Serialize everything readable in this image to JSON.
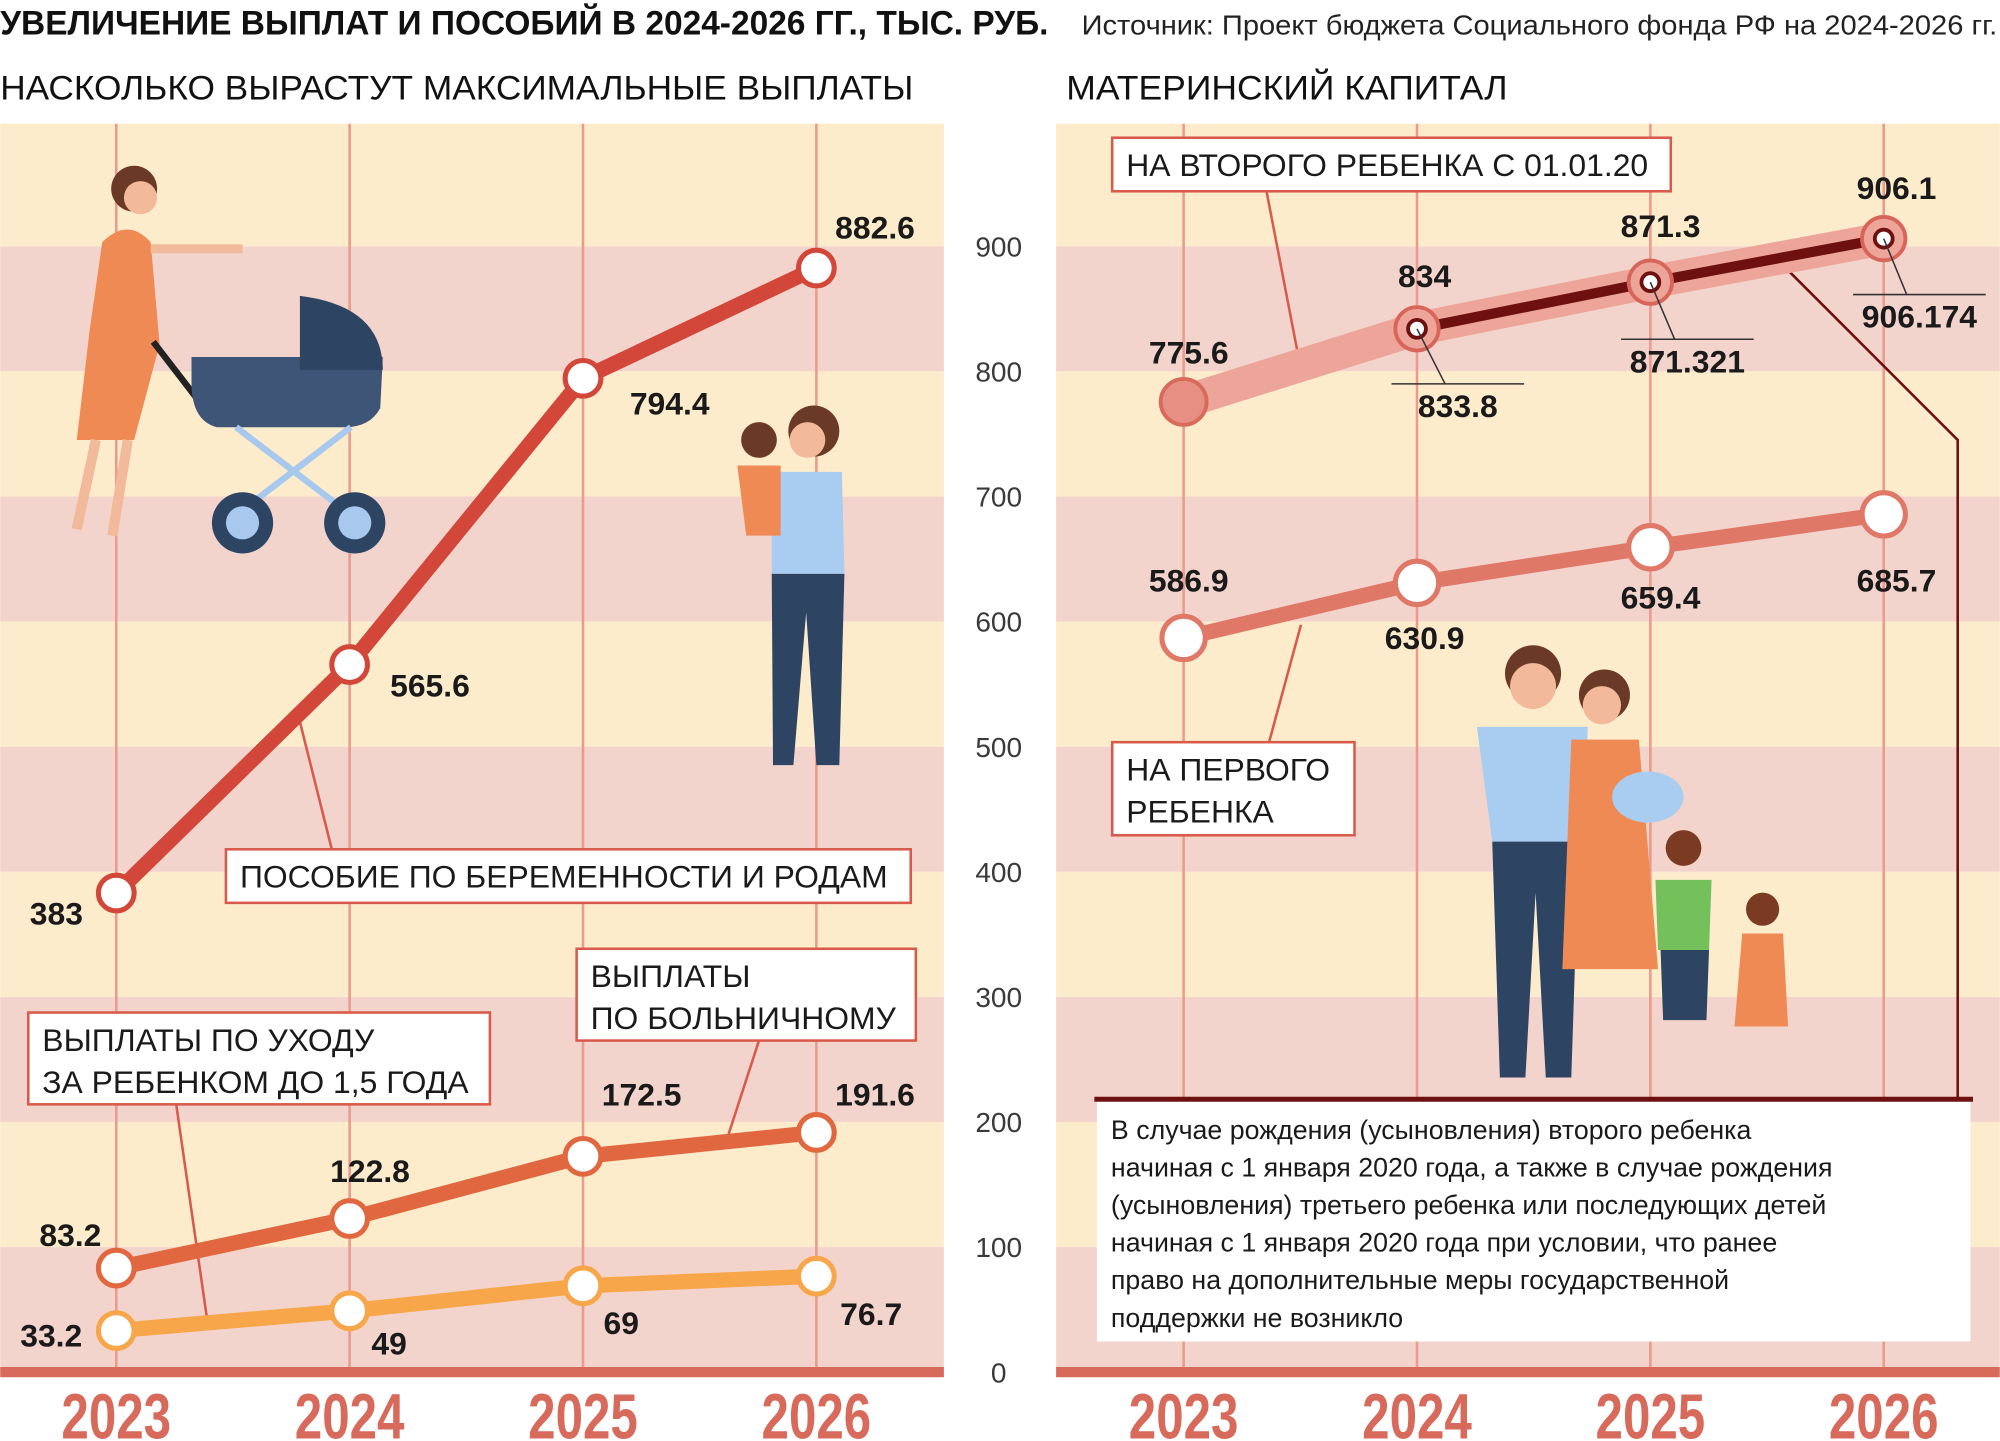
{
  "title": "УВЕЛИЧЕНИЕ ВЫПЛАТ И ПОСОБИЙ В 2024-2026 ГГ., ТЫС. РУБ.",
  "source": "Источник: Проект бюджета Социального фонда РФ на 2024-2026 гг.",
  "colors": {
    "band_light": "#fdeccb",
    "band_dark": "#f3d4cc",
    "grid": "#ec9a8c",
    "maternity": "#d2473a",
    "sick": "#e0673f",
    "childcare": "#f7a64a",
    "first_child": "#e07868",
    "second_child": "#eda59a",
    "second_child_inner": "#6e1010",
    "axis": "#d86a5c"
  },
  "chart_data": [
    {
      "type": "line",
      "title": "НАСКОЛЬКО ВЫРАСТУТ МАКСИМАЛЬНЫЕ ВЫПЛАТЫ",
      "categories": [
        "2023",
        "2024",
        "2025",
        "2026"
      ],
      "ylim": [
        0,
        1000
      ],
      "yticks": [
        0,
        100,
        200,
        300,
        400,
        500,
        600,
        700,
        800,
        900
      ],
      "grid": true,
      "series": [
        {
          "name": "ПОСОБИЕ ПО БЕРЕМЕННОСТИ И РОДАМ",
          "values": [
            383,
            565.6,
            794.4,
            882.6
          ]
        },
        {
          "name": "ВЫПЛАТЫ ПО БОЛЬНИЧНОМУ",
          "name_lines": [
            "ВЫПЛАТЫ",
            "ПО БОЛЬНИЧНОМУ"
          ],
          "values": [
            83.2,
            122.8,
            172.5,
            191.6
          ]
        },
        {
          "name": "ВЫПЛАТЫ ПО УХОДУ ЗА РЕБЕНКОМ ДО 1,5 ГОДА",
          "name_lines": [
            "ВЫПЛАТЫ ПО УХОДУ",
            "ЗА РЕБЕНКОМ ДО 1,5 ГОДА"
          ],
          "values": [
            33.2,
            49,
            69,
            76.7
          ]
        }
      ]
    },
    {
      "type": "line",
      "title": "МАТЕРИНСКИЙ КАПИТАЛ",
      "categories": [
        "2023",
        "2024",
        "2025",
        "2026"
      ],
      "ylim": [
        0,
        1000
      ],
      "grid": true,
      "series": [
        {
          "name": "НА ВТОРОГО РЕБЕНКА С 01.01.20",
          "values": [
            775.6,
            834,
            871.3,
            906.1
          ],
          "labels": [
            "775.6",
            "834",
            "871.3",
            "906.1"
          ],
          "alt_values": [
            833.8,
            871.321,
            906.174
          ]
        },
        {
          "name": "НА ПЕРВОГО РЕБЕНКА",
          "name_lines": [
            "НА ПЕРВОГО",
            "РЕБЕНКА"
          ],
          "values": [
            586.9,
            630.9,
            659.4,
            685.7
          ]
        }
      ],
      "note": [
        "В случае рождения (усыновления) второго ребенка",
        "начиная с 1 января 2020 года, а также в случае рождения",
        "(усыновления) третьего ребенка или последующих детей",
        "начиная с 1 января 2020 года при условии, что ранее",
        "право на дополнительные меры государственной",
        "поддержки не возникло"
      ]
    }
  ]
}
